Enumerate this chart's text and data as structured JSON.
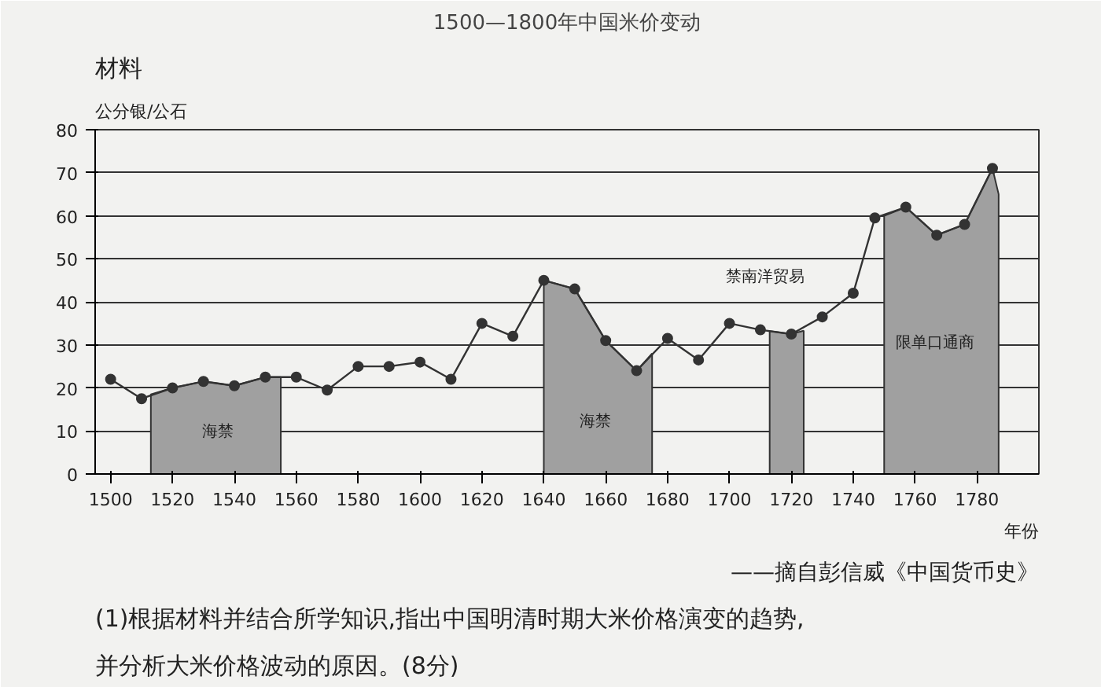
{
  "chart_data": {
    "type": "line",
    "title": "1500—1800年中国米价变动",
    "ylabel": "公分银/公石",
    "xlabel": "年份",
    "xlim": [
      1495,
      1800
    ],
    "xticks": [
      1500,
      1520,
      1540,
      1560,
      1580,
      1600,
      1620,
      1640,
      1660,
      1680,
      1700,
      1720,
      1740,
      1760,
      1780
    ],
    "ylim": [
      0,
      80
    ],
    "yticks": [
      0,
      10,
      20,
      30,
      40,
      50,
      60,
      70,
      80
    ],
    "grid": "y",
    "series": [
      {
        "type": "area",
        "color": "#a0a0a0",
        "x": [
          1513,
          1520,
          1530,
          1540,
          1550,
          1555
        ],
        "values": [
          18.5,
          20,
          21.5,
          20.5,
          22.5,
          22.5
        ]
      },
      {
        "type": "area",
        "color": "#a0a0a0",
        "x": [
          1640,
          1650,
          1660,
          1670,
          1675
        ],
        "values": [
          45,
          43,
          31,
          24,
          28
        ]
      },
      {
        "type": "area",
        "color": "#a0a0a0",
        "x": [
          1713,
          1720,
          1724
        ],
        "values": [
          33.2,
          32.5,
          33.3
        ]
      },
      {
        "type": "area",
        "color": "#a0a0a0",
        "x": [
          1750,
          1757,
          1767,
          1776,
          1785,
          1787
        ],
        "values": [
          60,
          62,
          55.5,
          58,
          71,
          65
        ]
      },
      {
        "color": "#333333",
        "marker": "circle",
        "line_style": "solid",
        "x": [
          1500,
          1510,
          1520,
          1530,
          1540,
          1550,
          1560,
          1570,
          1580,
          1590,
          1600,
          1610,
          1620,
          1630,
          1640,
          1650,
          1660,
          1670,
          1680,
          1690,
          1700,
          1710,
          1720,
          1730,
          1740,
          1747,
          1757,
          1767,
          1776,
          1785
        ],
        "values": [
          22,
          17.5,
          20,
          21.5,
          20.5,
          22.5,
          22.5,
          19.5,
          25,
          25,
          26,
          22,
          35,
          32,
          45,
          43,
          31,
          24,
          31.5,
          26.5,
          35,
          33.5,
          32.5,
          36.5,
          42,
          59.5,
          62,
          55.5,
          58,
          71
        ]
      }
    ],
    "annotations": [
      "海禁",
      "海禁",
      "禁南洋贸易",
      "限单口通商",
      "——摘自彭信威《中国货币史》",
      "材料",
      "(1)根据材料并结合所学知识,指出中国明清时期大米价格演变的趋势,\n并分析大米价格波动的原因。(8分)"
    ]
  }
}
